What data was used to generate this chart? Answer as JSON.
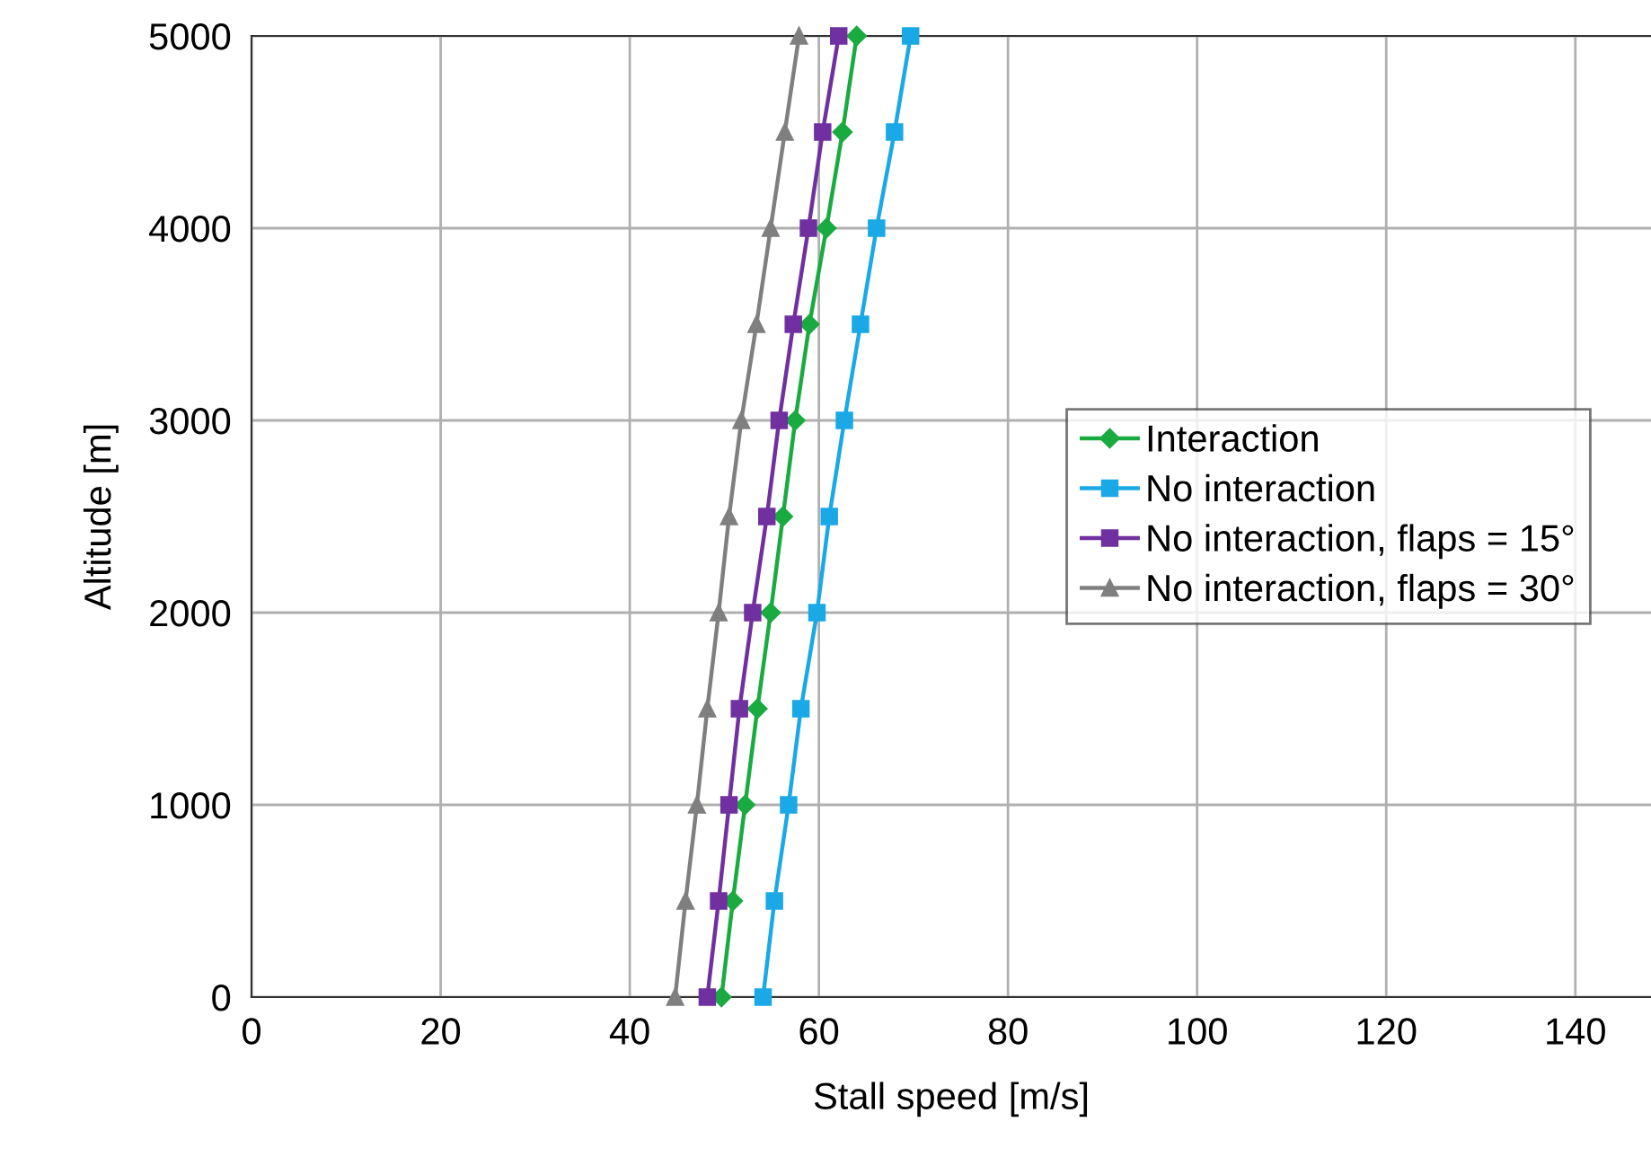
{
  "chart_data": {
    "type": "line",
    "xlabel": "Stall speed [m/s]",
    "ylabel": "Altitude [m]",
    "xlim": [
      0,
      148
    ],
    "xticks": [
      0,
      20,
      40,
      60,
      80,
      100,
      120,
      140
    ],
    "ylim": [
      0,
      5000
    ],
    "yticks": [
      0,
      1000,
      2000,
      3000,
      4000,
      5000
    ],
    "grid": true,
    "legend": "center right",
    "series": [
      {
        "name": "Interaction",
        "color": "#1aab40",
        "marker": "diamond",
        "x": [
          49.7,
          50.9,
          52.2,
          53.5,
          54.9,
          56.2,
          57.5,
          59.0,
          60.8,
          62.5,
          64.0
        ],
        "values": [
          0,
          500,
          1000,
          1500,
          2000,
          2500,
          3000,
          3500,
          4000,
          4500,
          5000
        ]
      },
      {
        "name": "No interaction",
        "color": "#1aa9e6",
        "marker": "square",
        "x": [
          54.1,
          55.3,
          56.8,
          58.1,
          59.8,
          61.1,
          62.7,
          64.4,
          66.1,
          68.0,
          69.7
        ],
        "values": [
          0,
          500,
          1000,
          1500,
          2000,
          2500,
          3000,
          3500,
          4000,
          4500,
          5000
        ]
      },
      {
        "name": "No interaction, flaps = 15°",
        "color": "#7030a0",
        "marker": "square",
        "x": [
          48.2,
          49.4,
          50.5,
          51.6,
          53.0,
          54.5,
          55.8,
          57.3,
          58.9,
          60.4,
          62.1
        ],
        "values": [
          0,
          500,
          1000,
          1500,
          2000,
          2500,
          3000,
          3500,
          4000,
          4500,
          5000
        ]
      },
      {
        "name": "No interaction, flaps = 30°",
        "color": "#7f7f7f",
        "marker": "triangle",
        "x": [
          44.8,
          45.9,
          47.1,
          48.2,
          49.4,
          50.5,
          51.8,
          53.4,
          54.9,
          56.4,
          57.9
        ],
        "values": [
          0,
          500,
          1000,
          1500,
          2000,
          2500,
          3000,
          3500,
          4000,
          4500,
          5000
        ]
      }
    ]
  }
}
